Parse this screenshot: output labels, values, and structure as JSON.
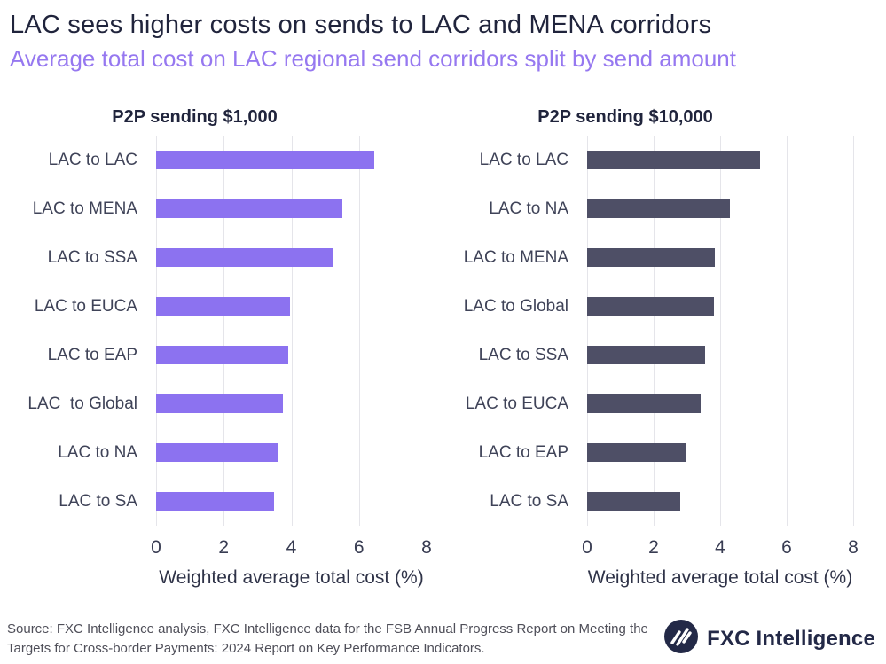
{
  "header": {
    "title": "LAC sees higher costs on sends to LAC and MENA corridors",
    "subtitle": "Average total cost on LAC regional send corridors split by send amount"
  },
  "colors": {
    "title": "#20243C",
    "subtitle": "#9678F0",
    "bar_purple": "#8C72F0",
    "bar_dark": "#4E4F66",
    "label": "#3F4358",
    "gridline": "#E5E5EA",
    "source": "#4F4F59",
    "logo": "#232947"
  },
  "chart_data": [
    {
      "type": "bar",
      "orientation": "horizontal",
      "title": "P2P sending $1,000",
      "categories": [
        "LAC to LAC",
        "LAC to MENA",
        "LAC to SSA",
        "LAC to EUCA",
        "LAC to EAP",
        "LAC  to Global",
        "LAC to NA",
        "LAC to SA"
      ],
      "values": [
        6.45,
        5.5,
        5.25,
        3.95,
        3.9,
        3.75,
        3.6,
        3.5
      ],
      "bar_color": "#8C72F0",
      "xlabel": "Weighted average total cost (%)",
      "xlim": [
        0,
        8
      ],
      "xticks": [
        0,
        2,
        4,
        6,
        8
      ],
      "grid": true,
      "legend": "none"
    },
    {
      "type": "bar",
      "orientation": "horizontal",
      "title": "P2P sending $10,000",
      "categories": [
        "LAC to LAC",
        "LAC to NA",
        "LAC to MENA",
        "LAC to Global",
        "LAC to SSA",
        "LAC to EUCA",
        "LAC to EAP",
        "LAC to SA"
      ],
      "values": [
        5.2,
        4.3,
        3.85,
        3.8,
        3.55,
        3.4,
        2.95,
        2.8
      ],
      "bar_color": "#4E4F66",
      "xlabel": "Weighted average total cost (%)",
      "xlim": [
        0,
        8
      ],
      "xticks": [
        0,
        2,
        4,
        6,
        8
      ],
      "grid": true,
      "legend": "none"
    }
  ],
  "footer": {
    "source": "Source: FXC Intelligence analysis, FXC Intelligence data for the FSB Annual Progress Report on Meeting the Targets for Cross-border Payments: 2024 Report on Key Performance Indicators.",
    "logo_text": "FXC Intelligence"
  }
}
